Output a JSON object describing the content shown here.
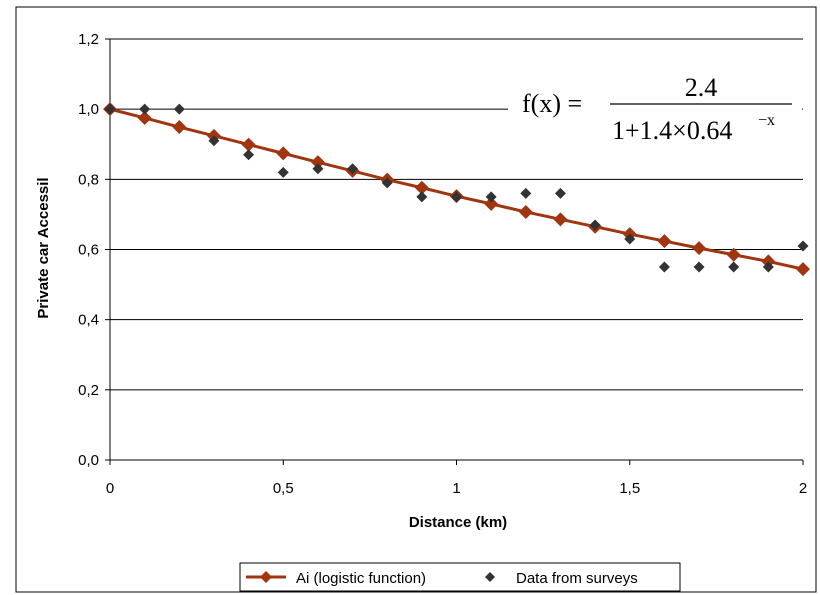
{
  "chart_data": {
    "type": "line",
    "xlabel": "Distance (km)",
    "ylabel": "Private car Accessil",
    "xlim": [
      0,
      2
    ],
    "ylim": [
      0,
      1.2
    ],
    "x_ticks": [
      "0",
      "0,5",
      "1",
      "1,5",
      "2"
    ],
    "x_tick_values": [
      0,
      0.5,
      1,
      1.5,
      2
    ],
    "y_ticks": [
      "0,0",
      "0,2",
      "0,4",
      "0,6",
      "0,8",
      "1,0",
      "1,2"
    ],
    "y_tick_values": [
      0,
      0.2,
      0.4,
      0.6,
      0.8,
      1.0,
      1.2
    ],
    "grid": "horizontal",
    "legend_position": "bottom",
    "formula": {
      "lhs": "f(x) =",
      "numerator": "2.4",
      "denominator": "1+1.4×0.64",
      "exponent": "−x"
    },
    "series": [
      {
        "name": "Ai (logistic function)",
        "kind": "line-with-markers",
        "color": "#a0350f",
        "x": [
          0,
          0.1,
          0.2,
          0.3,
          0.4,
          0.5,
          0.6,
          0.7,
          0.8,
          0.9,
          1.0,
          1.1,
          1.2,
          1.3,
          1.4,
          1.5,
          1.6,
          1.7,
          1.8,
          1.9,
          2.0
        ],
        "y": [
          1.0,
          0.975,
          0.949,
          0.924,
          0.899,
          0.874,
          0.849,
          0.824,
          0.799,
          0.776,
          0.752,
          0.73,
          0.707,
          0.686,
          0.665,
          0.644,
          0.624,
          0.604,
          0.585,
          0.566,
          0.544
        ]
      },
      {
        "name": "Data from surveys",
        "kind": "scatter",
        "color": "#333333",
        "x": [
          0,
          0.1,
          0.2,
          0.3,
          0.4,
          0.5,
          0.6,
          0.7,
          0.8,
          0.9,
          1.0,
          1.1,
          1.2,
          1.3,
          1.4,
          1.5,
          1.6,
          1.7,
          1.8,
          1.9,
          2.0
        ],
        "y": [
          1.0,
          1.0,
          1.0,
          0.91,
          0.87,
          0.82,
          0.83,
          0.83,
          0.79,
          0.75,
          0.75,
          0.75,
          0.76,
          0.76,
          0.67,
          0.63,
          0.55,
          0.55,
          0.55,
          0.55,
          0.61
        ]
      }
    ]
  }
}
